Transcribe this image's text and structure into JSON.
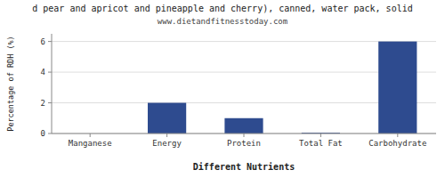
{
  "chart_data": {
    "type": "bar",
    "title": "d pear and apricot and pineapple and cherry), canned, water pack, solid",
    "subtitle": "www.dietandfitnesstoday.com",
    "xlabel": "Different Nutrients",
    "ylabel": "Percentage of RDH (%)",
    "categories": [
      "Manganese",
      "Energy",
      "Protein",
      "Total Fat",
      "Carbohydrate"
    ],
    "values": [
      0.0,
      2.0,
      1.0,
      0.05,
      6.0
    ],
    "color": "#2e4b8f",
    "ylim": [
      0,
      6.5
    ],
    "yticks": [
      0,
      2,
      4,
      6
    ],
    "grid": true
  }
}
